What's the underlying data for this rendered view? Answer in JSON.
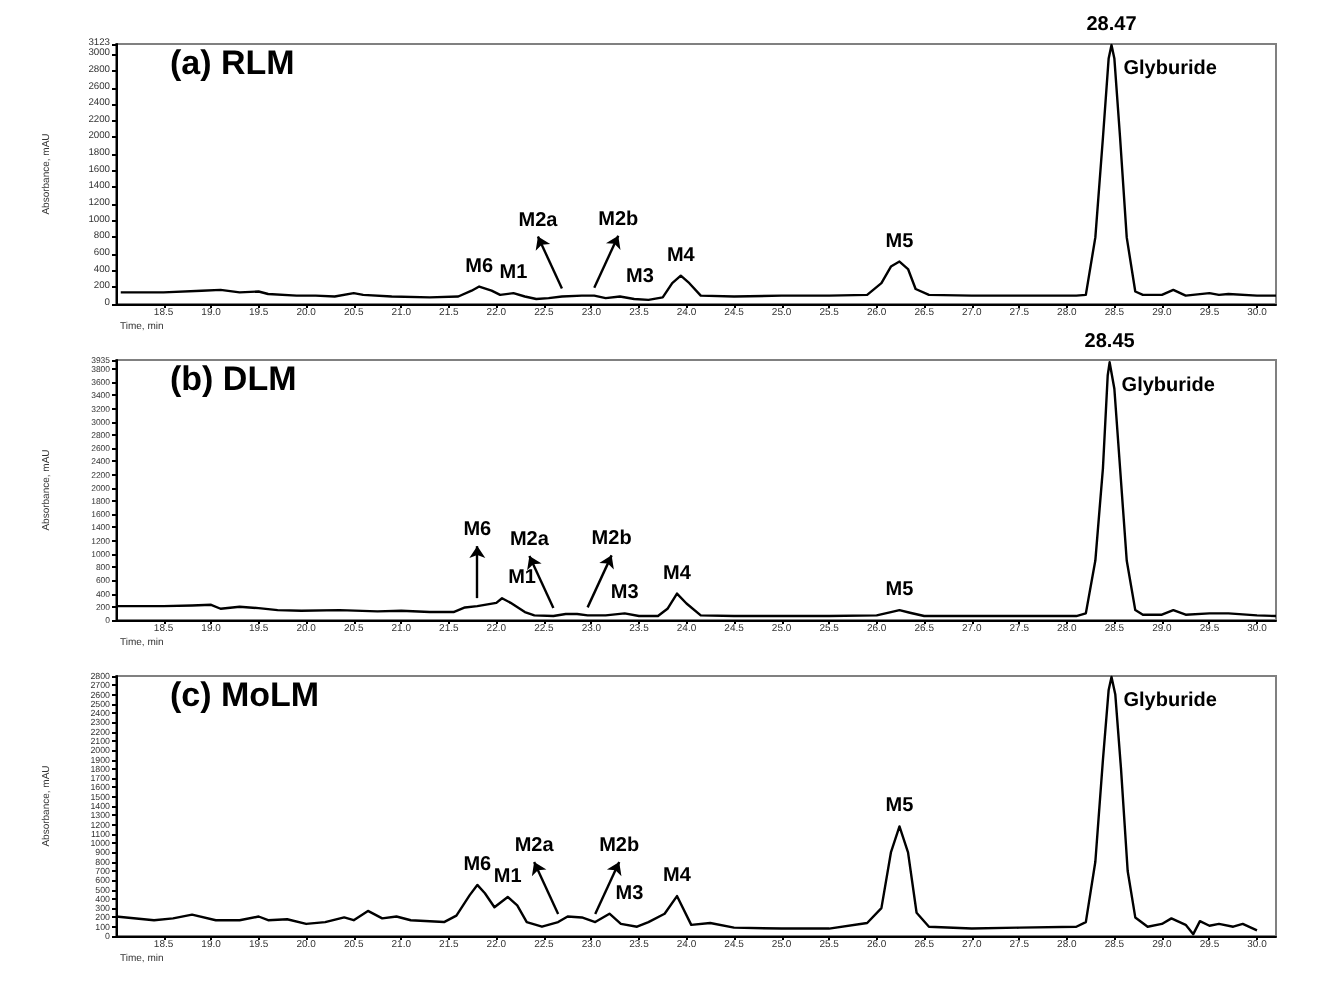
{
  "chart_data": [
    {
      "type": "line",
      "title": "(a) RLM",
      "xlabel": "Time, min",
      "ylabel": "Absorbance, mAU",
      "color": "#000000",
      "x": [
        18.05,
        18.5,
        18.9,
        19.1,
        19.3,
        19.5,
        19.6,
        19.9,
        20.1,
        20.3,
        20.5,
        20.6,
        20.9,
        21.3,
        21.6,
        21.74,
        21.82,
        21.95,
        22.04,
        22.18,
        22.3,
        22.42,
        22.55,
        22.69,
        22.9,
        23.03,
        23.15,
        23.3,
        23.45,
        23.6,
        23.75,
        23.85,
        23.94,
        24.03,
        24.15,
        24.5,
        25.0,
        25.5,
        25.9,
        26.05,
        26.15,
        26.24,
        26.33,
        26.41,
        26.55,
        27.0,
        27.5,
        28.1,
        28.2,
        28.3,
        28.38,
        28.44,
        28.47,
        28.5,
        28.56,
        28.63,
        28.72,
        28.8,
        29.0,
        29.12,
        29.25,
        29.5,
        29.6,
        29.7,
        30.0,
        30.2
      ],
      "values": [
        140,
        140,
        160,
        170,
        140,
        150,
        120,
        100,
        100,
        90,
        130,
        110,
        90,
        80,
        90,
        160,
        210,
        160,
        110,
        130,
        90,
        60,
        70,
        90,
        100,
        100,
        70,
        90,
        60,
        50,
        80,
        250,
        340,
        250,
        100,
        90,
        100,
        100,
        110,
        250,
        450,
        510,
        420,
        180,
        110,
        100,
        100,
        100,
        110,
        800,
        2000,
        2950,
        3110,
        2950,
        2000,
        800,
        150,
        110,
        110,
        170,
        100,
        130,
        110,
        120,
        100,
        100
      ],
      "xlim": [
        18.0,
        30.2
      ],
      "xticks": [
        18.5,
        {
          "value": 19,
          "label": "19.0"
        },
        19.5,
        {
          "value": 20,
          "label": "20.0"
        },
        20.5,
        {
          "value": 21,
          "label": "21.0"
        },
        21.5,
        {
          "value": 22,
          "label": "22.0"
        },
        22.5,
        {
          "value": 23,
          "label": "23.0"
        },
        23.5,
        {
          "value": 24,
          "label": "24.0"
        },
        24.5,
        {
          "value": 25,
          "label": "25.0"
        },
        25.5,
        {
          "value": 26,
          "label": "26.0"
        },
        26.5,
        {
          "value": 27,
          "label": "27.0"
        },
        27.5,
        {
          "value": 28,
          "label": "28.0"
        },
        28.5,
        {
          "value": 29,
          "label": "29.0"
        },
        29.5,
        {
          "value": 30,
          "label": "30.0"
        }
      ],
      "ylim": [
        0,
        3123
      ],
      "yticks": [
        0,
        200,
        400,
        600,
        800,
        1000,
        1200,
        1400,
        1600,
        1800,
        2000,
        2200,
        2400,
        2600,
        2800,
        3000,
        3123
      ],
      "annotations": [
        {
          "text": "M6",
          "x": 21.82,
          "y": 210
        },
        {
          "text": "M1",
          "x": 22.18,
          "y": 130
        },
        {
          "text": "M2a",
          "x": 22.69,
          "y": 90
        },
        {
          "text": "M2b",
          "x": 23.03,
          "y": 100
        },
        {
          "text": "M3",
          "x": 23.3,
          "y": 90
        },
        {
          "text": "M4",
          "x": 23.94,
          "y": 340
        },
        {
          "text": "M5",
          "x": 26.24,
          "y": 510
        },
        {
          "text": "28.47",
          "x": 28.47,
          "y": 3110
        },
        {
          "text": "Glyburide",
          "x": 28.47,
          "y": 3110
        }
      ]
    },
    {
      "type": "line",
      "title": "(b) DLM",
      "xlabel": "Time, min",
      "ylabel": "Absorbance, mAU",
      "color": "#000000",
      "x": [
        18.0,
        18.5,
        18.8,
        19.0,
        19.1,
        19.3,
        19.5,
        19.7,
        19.95,
        20.35,
        20.75,
        21.0,
        21.3,
        21.55,
        21.67,
        21.8,
        22.0,
        22.06,
        22.15,
        22.3,
        22.4,
        22.6,
        22.73,
        22.85,
        22.96,
        23.15,
        23.35,
        23.5,
        23.7,
        23.8,
        23.9,
        24.0,
        24.15,
        24.5,
        25.0,
        25.5,
        26.0,
        26.15,
        26.24,
        26.35,
        26.5,
        27.0,
        27.5,
        28.1,
        28.2,
        28.3,
        28.38,
        28.43,
        28.45,
        28.5,
        28.56,
        28.63,
        28.72,
        28.8,
        29.0,
        29.12,
        29.25,
        29.5,
        29.7,
        30.0,
        30.2
      ],
      "values": [
        210,
        210,
        220,
        230,
        170,
        200,
        180,
        150,
        140,
        150,
        130,
        140,
        120,
        120,
        190,
        210,
        260,
        330,
        260,
        120,
        70,
        60,
        90,
        90,
        70,
        70,
        100,
        60,
        60,
        170,
        400,
        250,
        70,
        60,
        60,
        60,
        70,
        120,
        150,
        110,
        60,
        60,
        60,
        60,
        100,
        900,
        2300,
        3700,
        3900,
        3500,
        2300,
        900,
        150,
        80,
        80,
        150,
        80,
        100,
        100,
        70,
        60
      ],
      "xlim": [
        18.0,
        30.2
      ],
      "xticks": [
        18.5,
        {
          "value": 19,
          "label": "19.0"
        },
        19.5,
        {
          "value": 20,
          "label": "20.0"
        },
        20.5,
        {
          "value": 21,
          "label": "21.0"
        },
        21.5,
        {
          "value": 22,
          "label": "22.0"
        },
        22.5,
        {
          "value": 23,
          "label": "23.0"
        },
        23.5,
        {
          "value": 24,
          "label": "24.0"
        },
        24.5,
        {
          "value": 25,
          "label": "25.0"
        },
        25.5,
        {
          "value": 26,
          "label": "26.0"
        },
        26.5,
        {
          "value": 27,
          "label": "27.0"
        },
        27.5,
        {
          "value": 28,
          "label": "28.0"
        },
        28.5,
        {
          "value": 29,
          "label": "29.0"
        },
        29.5,
        {
          "value": 30,
          "label": "30.0"
        }
      ],
      "ylim": [
        0,
        3935
      ],
      "yticks": [
        0,
        200,
        400,
        600,
        800,
        1000,
        1200,
        1400,
        1600,
        1800,
        2000,
        2200,
        2400,
        2600,
        2800,
        3000,
        3200,
        3400,
        3600,
        3800,
        3935
      ],
      "annotations": [
        {
          "text": "M6",
          "x": 21.8,
          "y": 210
        },
        {
          "text": "M1",
          "x": 22.06,
          "y": 330
        },
        {
          "text": "M2a",
          "x": 22.6,
          "y": 60
        },
        {
          "text": "M2b",
          "x": 22.96,
          "y": 70
        },
        {
          "text": "M3",
          "x": 23.35,
          "y": 100
        },
        {
          "text": "M4",
          "x": 23.9,
          "y": 400
        },
        {
          "text": "M5",
          "x": 26.24,
          "y": 150
        },
        {
          "text": "28.45",
          "x": 28.45,
          "y": 3900
        },
        {
          "text": "Glyburide",
          "x": 28.45,
          "y": 3900
        }
      ]
    },
    {
      "type": "line",
      "title": "(c) MoLM",
      "xlabel": "Time, min",
      "ylabel": "Absorbance, mAU",
      "color": "#000000",
      "x": [
        18.0,
        18.4,
        18.6,
        18.8,
        19.05,
        19.3,
        19.5,
        19.6,
        19.8,
        20.0,
        20.2,
        20.4,
        20.5,
        20.65,
        20.8,
        20.95,
        21.1,
        21.45,
        21.58,
        21.72,
        21.8,
        21.88,
        21.98,
        22.12,
        22.22,
        22.32,
        22.48,
        22.65,
        22.75,
        22.9,
        23.04,
        23.19,
        23.31,
        23.48,
        23.6,
        23.77,
        23.9,
        24.05,
        24.25,
        24.5,
        25.0,
        25.5,
        25.9,
        26.05,
        26.15,
        26.24,
        26.33,
        26.42,
        26.55,
        27.0,
        27.5,
        28.1,
        28.2,
        28.3,
        28.38,
        28.44,
        28.47,
        28.51,
        28.57,
        28.64,
        28.72,
        28.85,
        29.0,
        29.1,
        29.25,
        29.33,
        29.4,
        29.5,
        29.6,
        29.75,
        29.85,
        30.0
      ],
      "values": [
        210,
        170,
        190,
        230,
        170,
        170,
        210,
        170,
        180,
        130,
        150,
        200,
        170,
        270,
        190,
        210,
        170,
        150,
        220,
        440,
        550,
        460,
        310,
        420,
        330,
        150,
        100,
        150,
        210,
        200,
        150,
        240,
        130,
        100,
        150,
        240,
        430,
        120,
        140,
        90,
        80,
        80,
        140,
        300,
        900,
        1180,
        900,
        250,
        100,
        80,
        90,
        100,
        150,
        800,
        1900,
        2650,
        2790,
        2600,
        1800,
        700,
        200,
        100,
        130,
        190,
        120,
        20,
        160,
        110,
        130,
        100,
        130,
        60
      ],
      "xlim": [
        18.0,
        30.2
      ],
      "xticks": [
        18.5,
        {
          "value": 19,
          "label": "19.0"
        },
        19.5,
        {
          "value": 20,
          "label": "20.0"
        },
        20.5,
        {
          "value": 21,
          "label": "21.0"
        },
        21.5,
        {
          "value": 22,
          "label": "22.0"
        },
        22.5,
        {
          "value": 23,
          "label": "23.0"
        },
        23.5,
        {
          "value": 24,
          "label": "24.0"
        },
        24.5,
        {
          "value": 25,
          "label": "25.0"
        },
        25.5,
        {
          "value": 26,
          "label": "26.0"
        },
        26.5,
        {
          "value": 27,
          "label": "27.0"
        },
        27.5,
        {
          "value": 28,
          "label": "28.0"
        },
        28.5,
        {
          "value": 29,
          "label": "29.0"
        },
        29.5,
        {
          "value": 30,
          "label": "30.0"
        }
      ],
      "ylim": [
        0,
        2800
      ],
      "yticks": [
        0,
        100,
        200,
        300,
        400,
        500,
        600,
        700,
        800,
        900,
        1000,
        1100,
        1200,
        1300,
        1400,
        1500,
        1600,
        1700,
        1800,
        1900,
        2000,
        2100,
        2200,
        2300,
        2400,
        2500,
        2600,
        2700,
        2800
      ],
      "annotations": [
        {
          "text": "M6",
          "x": 21.8,
          "y": 550
        },
        {
          "text": "M1",
          "x": 22.12,
          "y": 420
        },
        {
          "text": "M2a",
          "x": 22.65,
          "y": 150
        },
        {
          "text": "M2b",
          "x": 23.04,
          "y": 150
        },
        {
          "text": "M3",
          "x": 23.19,
          "y": 240
        },
        {
          "text": "M4",
          "x": 23.9,
          "y": 430
        },
        {
          "text": "M5",
          "x": 26.24,
          "y": 1180
        },
        {
          "text": "Glyburide",
          "x": 28.47,
          "y": 2790
        }
      ]
    }
  ]
}
